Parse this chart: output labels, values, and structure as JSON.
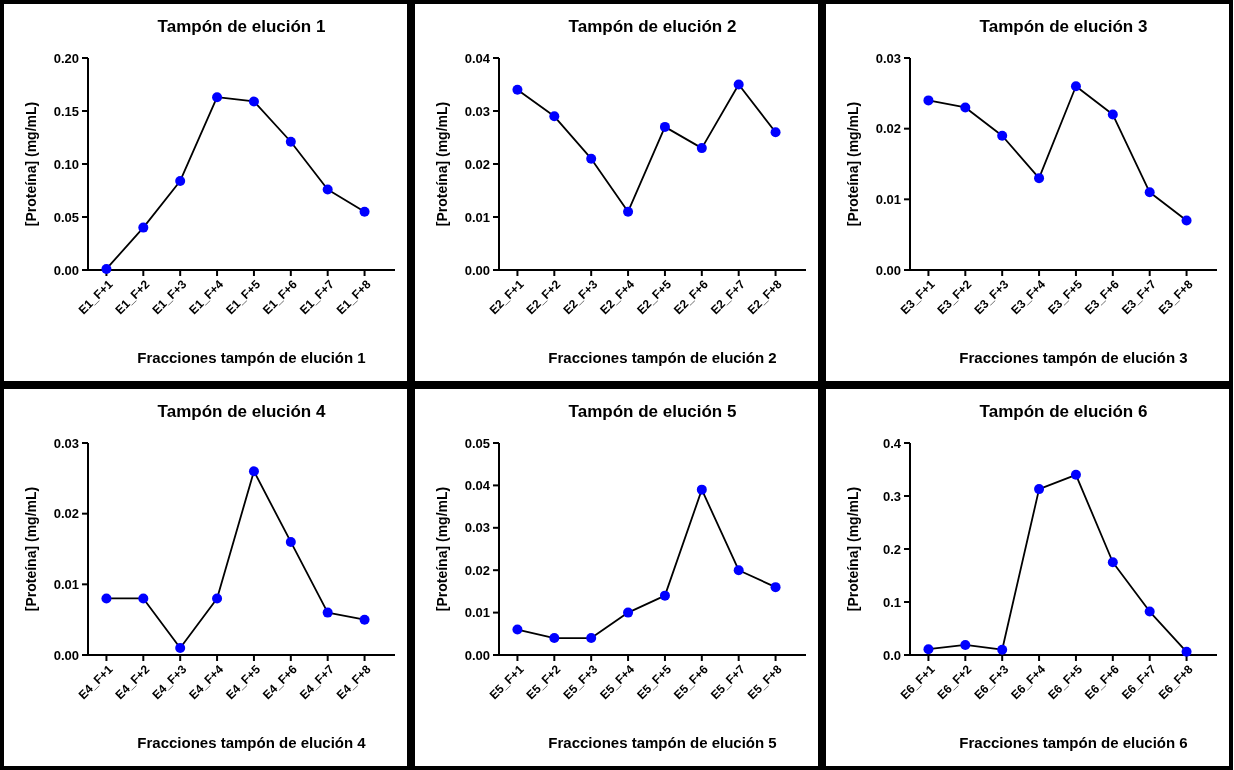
{
  "chart_data": [
    {
      "type": "line",
      "title": "Tampón de elución 1",
      "xlabel": "Fracciones tampón de elución 1",
      "ylabel": "[Proteína] (mg/mL)",
      "categories": [
        "E1_F+1",
        "E1_F+2",
        "E1_F+3",
        "E1_F+4",
        "E1_F+5",
        "E1_F+6",
        "E1_F+7",
        "E1_F+8"
      ],
      "series": [
        {
          "color": "#0000ff",
          "values": [
            0.001,
            0.04,
            0.084,
            0.163,
            0.159,
            0.121,
            0.076,
            0.055
          ]
        }
      ],
      "ylim": [
        0,
        0.2
      ],
      "yticks": [
        {
          "value": 0,
          "label": "0.00"
        },
        {
          "value": 0.05,
          "label": "0.05"
        },
        {
          "value": 0.1,
          "label": "0.10"
        },
        {
          "value": 0.15,
          "label": "0.15"
        },
        {
          "value": 0.2,
          "label": "0.20"
        }
      ],
      "marker": "circle",
      "grid": false
    },
    {
      "type": "line",
      "title": "Tampón de elución 2",
      "xlabel": "Fracciones tampón de elución 2",
      "ylabel": "[Proteína] (mg/mL)",
      "categories": [
        "E2_F+1",
        "E2_F+2",
        "E2_F+3",
        "E2_F+4",
        "E2_F+5",
        "E2_F+6",
        "E2_F+7",
        "E2_F+8"
      ],
      "series": [
        {
          "color": "#0000ff",
          "values": [
            0.034,
            0.029,
            0.021,
            0.011,
            0.027,
            0.023,
            0.035,
            0.026
          ]
        }
      ],
      "ylim": [
        0,
        0.04
      ],
      "yticks": [
        {
          "value": 0,
          "label": "0.00"
        },
        {
          "value": 0.01,
          "label": "0.01"
        },
        {
          "value": 0.02,
          "label": "0.02"
        },
        {
          "value": 0.03,
          "label": "0.03"
        },
        {
          "value": 0.04,
          "label": "0.04"
        }
      ],
      "marker": "circle",
      "grid": false
    },
    {
      "type": "line",
      "title": "Tampón de elución 3",
      "xlabel": "Fracciones tampón de elución 3",
      "ylabel": "[Proteína] (mg/mL)",
      "categories": [
        "E3_F+1",
        "E3_F+2",
        "E3_F+3",
        "E3_F+4",
        "E3_F+5",
        "E3_F+6",
        "E3_F+7",
        "E3_F+8"
      ],
      "series": [
        {
          "color": "#0000ff",
          "values": [
            0.024,
            0.023,
            0.019,
            0.013,
            0.026,
            0.022,
            0.011,
            0.007
          ]
        }
      ],
      "ylim": [
        0,
        0.03
      ],
      "yticks": [
        {
          "value": 0,
          "label": "0.00"
        },
        {
          "value": 0.01,
          "label": "0.01"
        },
        {
          "value": 0.02,
          "label": "0.02"
        },
        {
          "value": 0.03,
          "label": "0.03"
        }
      ],
      "marker": "circle",
      "grid": false
    },
    {
      "type": "line",
      "title": "Tampón de elución 4",
      "xlabel": "Fracciones tampón de elución 4",
      "ylabel": "[Proteína] (mg/mL)",
      "categories": [
        "E4_F+1",
        "E4_F+2",
        "E4_F+3",
        "E4_F+4",
        "E4_F+5",
        "E4_F+6",
        "E4_F+7",
        "E4_F+8"
      ],
      "series": [
        {
          "color": "#0000ff",
          "values": [
            0.008,
            0.008,
            0.001,
            0.008,
            0.026,
            0.016,
            0.006,
            0.005
          ]
        }
      ],
      "ylim": [
        0,
        0.03
      ],
      "yticks": [
        {
          "value": 0,
          "label": "0.00"
        },
        {
          "value": 0.01,
          "label": "0.01"
        },
        {
          "value": 0.02,
          "label": "0.02"
        },
        {
          "value": 0.03,
          "label": "0.03"
        }
      ],
      "marker": "circle",
      "grid": false
    },
    {
      "type": "line",
      "title": "Tampón de elución 5",
      "xlabel": "Fracciones tampón de elución 5",
      "ylabel": "[Proteína] (mg/mL)",
      "categories": [
        "E5_F+1",
        "E5_F+2",
        "E5_F+3",
        "E5_F+4",
        "E5_F+5",
        "E5_F+6",
        "E5_F+7",
        "E5_F+8"
      ],
      "series": [
        {
          "color": "#0000ff",
          "values": [
            0.006,
            0.004,
            0.004,
            0.01,
            0.014,
            0.039,
            0.02,
            0.016
          ]
        }
      ],
      "ylim": [
        0,
        0.05
      ],
      "yticks": [
        {
          "value": 0,
          "label": "0.00"
        },
        {
          "value": 0.01,
          "label": "0.01"
        },
        {
          "value": 0.02,
          "label": "0.02"
        },
        {
          "value": 0.03,
          "label": "0.03"
        },
        {
          "value": 0.04,
          "label": "0.04"
        },
        {
          "value": 0.05,
          "label": "0.05"
        }
      ],
      "marker": "circle",
      "grid": false
    },
    {
      "type": "line",
      "title": "Tampón de elución 6",
      "xlabel": "Fracciones tampón de elución 6",
      "ylabel": "[Proteína] (mg/mL)",
      "categories": [
        "E6_F+1",
        "E6_F+2",
        "E6_F+3",
        "E6_F+4",
        "E6_F+5",
        "E6_F+6",
        "E6_F+7",
        "E6_F+8"
      ],
      "series": [
        {
          "color": "#0000ff",
          "values": [
            0.011,
            0.019,
            0.01,
            0.313,
            0.34,
            0.175,
            0.082,
            0.006
          ]
        }
      ],
      "ylim": [
        0,
        0.4
      ],
      "yticks": [
        {
          "value": 0,
          "label": "0.0"
        },
        {
          "value": 0.1,
          "label": "0.1"
        },
        {
          "value": 0.2,
          "label": "0.2"
        },
        {
          "value": 0.3,
          "label": "0.3"
        },
        {
          "value": 0.4,
          "label": "0.4"
        }
      ],
      "marker": "circle",
      "grid": false
    }
  ]
}
